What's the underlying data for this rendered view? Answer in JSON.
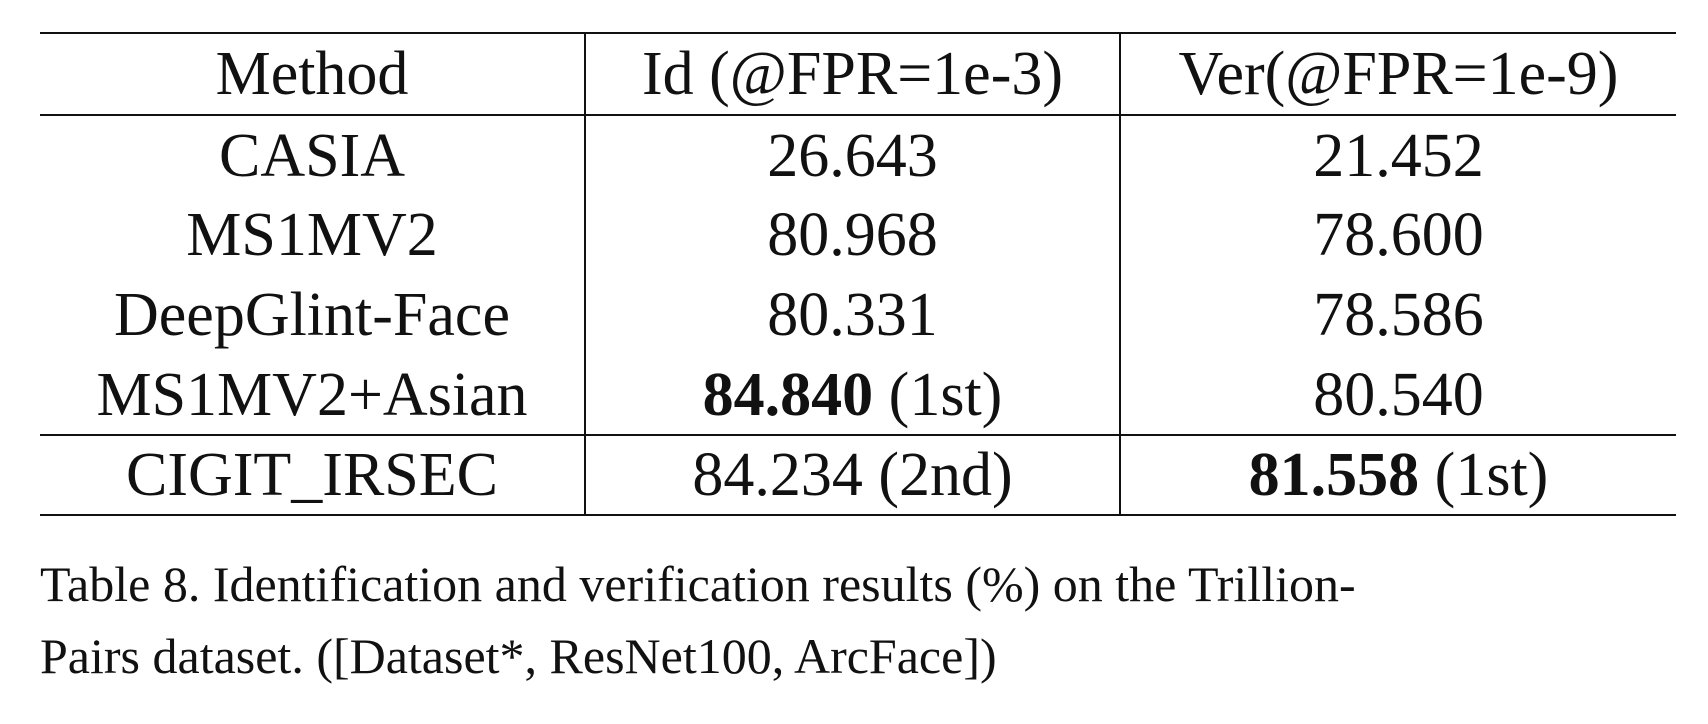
{
  "table": {
    "headers": [
      "Method",
      "Id (@FPR=1e-3)",
      "Ver(@FPR=1e-9)"
    ],
    "rows": [
      {
        "method": "CASIA",
        "id": "26.643",
        "id_note": "",
        "ver": "21.452",
        "ver_note": ""
      },
      {
        "method": "MS1MV2",
        "id": "80.968",
        "id_note": "",
        "ver": "78.600",
        "ver_note": ""
      },
      {
        "method": "DeepGlint-Face",
        "id": "80.331",
        "id_note": "",
        "ver": "78.586",
        "ver_note": ""
      },
      {
        "method": "MS1MV2+Asian",
        "id": "84.840",
        "id_note": " (1st)",
        "ver": "80.540",
        "ver_note": ""
      },
      {
        "method": "CIGIT_IRSEC",
        "id": "84.234",
        "id_note": " (2nd)",
        "ver": "81.558",
        "ver_note": " (1st)"
      }
    ]
  },
  "caption": {
    "line1": "Table 8. Identification and verification results (%) on the Trillion-",
    "line2": "Pairs dataset. ([Dataset*, ResNet100, ArcFace])"
  }
}
